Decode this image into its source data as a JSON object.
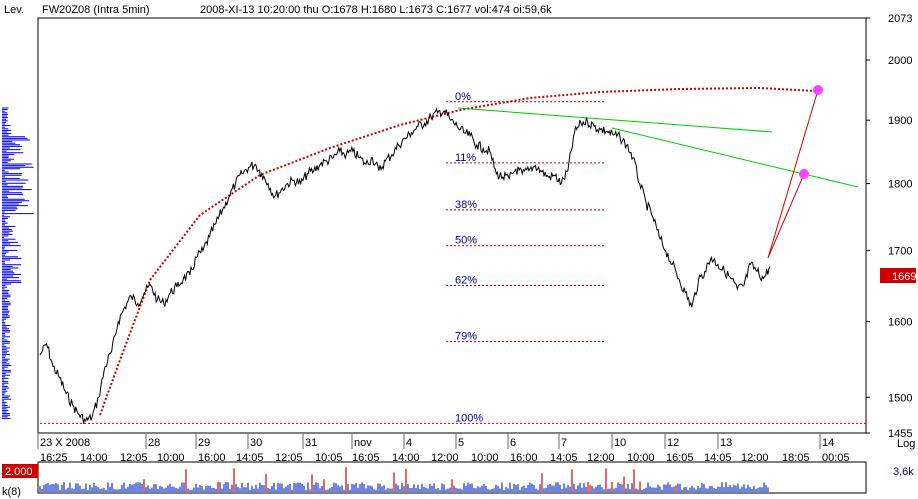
{
  "header": {
    "lev_label": "Lev.",
    "symbol": "FW20Z08 (Intra 5min)",
    "quote": "2008-XI-13  10:20:00 thu   O:1678 H:1680 L:1673 C:1677 vol:474 oi:59,6k"
  },
  "price_axis": {
    "ticks": [
      "2073",
      "2000",
      "1900",
      "1800",
      "1700",
      "1600",
      "1500",
      "1455"
    ],
    "log_label": "Log",
    "current_price_label": "1669"
  },
  "time_axis": {
    "day_labels": [
      "23 X 2008",
      "28",
      "29",
      "30",
      "31",
      "nov",
      "4",
      "5",
      "6",
      "7",
      "10",
      "12",
      "13",
      "14"
    ],
    "time_labels": [
      "16:25",
      "14:00",
      "12:05",
      "10:00",
      "16:00",
      "14:05",
      "12:05",
      "10:05",
      "16:05",
      "14:00",
      "12:00",
      "10:00",
      "16:00",
      "14:05",
      "12:00",
      "10:00",
      "16:05",
      "14:05",
      "12:00",
      "18:05",
      "00:05"
    ]
  },
  "fibonacci": [
    "0%",
    "11%",
    "38%",
    "50%",
    "62%",
    "79%",
    "100%"
  ],
  "volume_panel": {
    "scale_label": "2.000",
    "side_label": "3,6k",
    "bottom_label": "k(8)"
  },
  "colors": {
    "price_line": "#000000",
    "fib_line": "#cc0000",
    "fib_text": "#000099",
    "arc": "#cc0000",
    "trendline": "#00cc00",
    "projection": "#dd0000",
    "marker": "#ff44ff",
    "volume": "#1133cc",
    "volume_spike": "#dd0000",
    "profile": "#0000ee",
    "price_tag_bg": "#cc0000"
  },
  "chart_data": {
    "type": "line",
    "log_scale": true,
    "ylim": [
      1455,
      2073
    ],
    "y_ticks": [
      2073,
      2000,
      1900,
      1800,
      1700,
      1600,
      1500,
      1455
    ],
    "series": [
      {
        "values": [
          1555,
          1570,
          1540,
          1525,
          1505,
          1490,
          1478,
          1470,
          1475,
          1500,
          1540,
          1560,
          1600,
          1620,
          1635,
          1625,
          1640,
          1650,
          1630,
          1625,
          1640,
          1648,
          1660,
          1665,
          1690,
          1700,
          1720,
          1740,
          1760,
          1780,
          1800,
          1815,
          1825,
          1830,
          1815,
          1800,
          1780,
          1790,
          1800,
          1805,
          1800,
          1815,
          1820,
          1830,
          1835,
          1840,
          1850,
          1845,
          1850,
          1840,
          1830,
          1840,
          1820,
          1835,
          1845,
          1860,
          1870,
          1880,
          1890,
          1895,
          1905,
          1912,
          1915,
          1900,
          1890,
          1880,
          1875,
          1860,
          1855,
          1850,
          1815,
          1810,
          1808,
          1822,
          1815,
          1820,
          1828,
          1818,
          1810,
          1812,
          1800,
          1820,
          1880,
          1895,
          1898,
          1890,
          1885,
          1882,
          1876,
          1872,
          1860,
          1840,
          1800,
          1770,
          1750,
          1720,
          1700,
          1680,
          1660,
          1640,
          1620,
          1655,
          1670,
          1690,
          1680,
          1670,
          1660,
          1645,
          1650,
          1680,
          1670,
          1660,
          1677
        ]
      }
    ],
    "fibonacci_levels": [
      {
        "label": "0%",
        "value": 1930
      },
      {
        "label": "11%",
        "value": 1832
      },
      {
        "label": "38%",
        "value": 1760
      },
      {
        "label": "50%",
        "value": 1707
      },
      {
        "label": "62%",
        "value": 1650
      },
      {
        "label": "79%",
        "value": 1573
      },
      {
        "label": "100%",
        "value": 1467
      }
    ],
    "last_price": 1669
  }
}
